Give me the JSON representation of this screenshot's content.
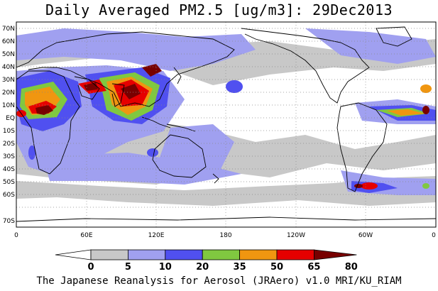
{
  "title": "Daily Averaged PM2.5 [ug/m3]: 29Dec2013",
  "footer": "The Japanese Reanalysis for Aerosol (JRAero) v1.0 MRI/KU_RIAM",
  "map": {
    "lat_labels": [
      "70N",
      "60N",
      "50N",
      "40N",
      "30N",
      "20N",
      "10N",
      "EQ",
      "10S",
      "20S",
      "30S",
      "40S",
      "50S",
      "60S",
      "70S"
    ],
    "lon_labels": [
      "0",
      "60E",
      "120E",
      "180",
      "120W",
      "60W",
      "0"
    ]
  },
  "colorbar": {
    "levels": [
      "0",
      "5",
      "10",
      "20",
      "35",
      "50",
      "65",
      "80"
    ],
    "colors": [
      "#ffffff",
      "#c8c8c8",
      "#a0a0f0",
      "#5050f0",
      "#80c840",
      "#f09610",
      "#e60000",
      "#780000"
    ]
  }
}
